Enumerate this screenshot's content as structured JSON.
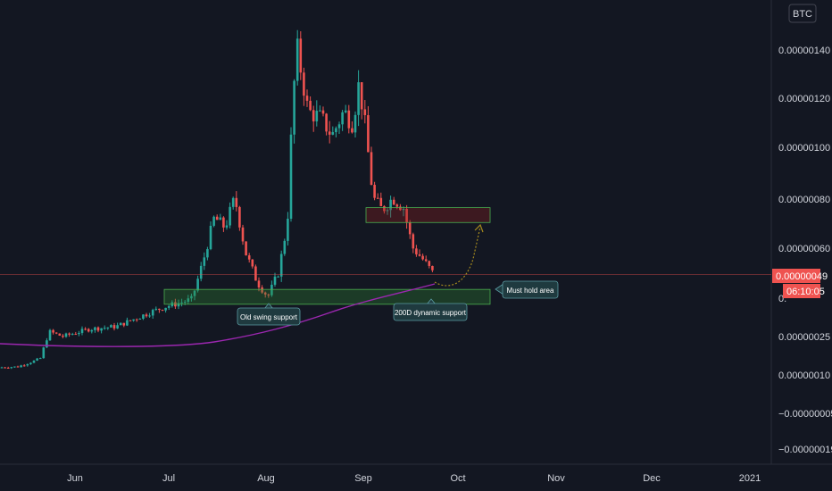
{
  "chart_data": {
    "type": "candlestick",
    "symbol_label": "BTC",
    "y_ticks": [
      "0.00000140",
      "0.00000120",
      "0.00000100",
      "0.00000080",
      "0.00000060",
      "0.00000025",
      "0.00000010",
      "−0.00000005",
      "−0.00000019"
    ],
    "x_ticks": [
      "Jun",
      "Jul",
      "Aug",
      "Sep",
      "Oct",
      "Nov",
      "Dec",
      "2021"
    ],
    "last_price_label": "0.00000049",
    "countdown_label": "06:10:05",
    "price_tag_partial": "0.",
    "annotations": {
      "old_swing": "Old swing support",
      "dma": "200D dynamic support",
      "must_hold": "Must hold area"
    },
    "key_points": [
      {
        "date": "late May",
        "price": 1.15e-07
      },
      {
        "date": "early Jun",
        "price": 2.6e-07
      },
      {
        "date": "early Jul",
        "price": 3.8e-07
      },
      {
        "date": "mid Jul",
        "price": 8e-07
      },
      {
        "date": "end Jul",
        "price": 4e-07
      },
      {
        "date": "mid Aug",
        "price": 1.4e-06
      },
      {
        "date": "late Aug",
        "price": 1.04e-06
      },
      {
        "date": "start Sep",
        "price": 1.26e-06
      },
      {
        "date": "mid Sep",
        "price": 8.2e-07
      },
      {
        "date": "late Sep",
        "price": 4.9e-07
      }
    ],
    "zones": [
      {
        "name": "must-hold",
        "low": 3.7e-07,
        "high": 4.3e-07
      },
      {
        "name": "resistance",
        "low": 7e-07,
        "high": 7.6e-07
      }
    ],
    "colors": {
      "up": "#26a69a",
      "down": "#ef5350",
      "ma": "#9c27b0",
      "zone_green": "#2e7d32",
      "zone_red": "#8b1e1e",
      "arrow": "#a58a1e",
      "background": "#131722",
      "price_tag": "#ef5350"
    }
  }
}
